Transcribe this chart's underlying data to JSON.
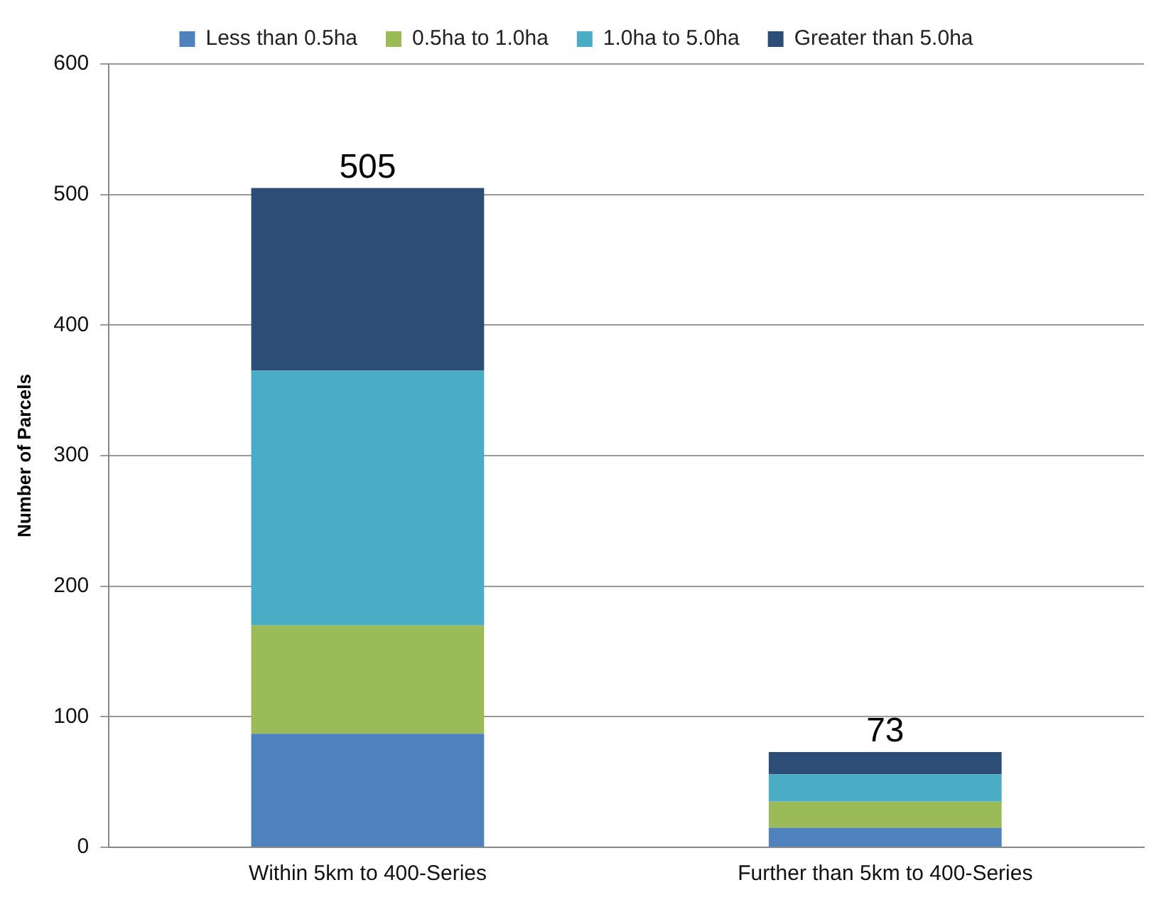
{
  "chart_data": {
    "type": "bar",
    "stacked": true,
    "ylabel": "Number of Parcels",
    "categories": [
      "Within 5km to 400-Series",
      "Further than 5km to 400-Series"
    ],
    "series": [
      {
        "name": "Less than 0.5ha",
        "color": "#4f81bd",
        "values": [
          87,
          15
        ]
      },
      {
        "name": "0.5ha to 1.0ha",
        "color": "#9bbb59",
        "values": [
          83,
          20
        ]
      },
      {
        "name": "1.0ha to 5.0ha",
        "color": "#4bacc6",
        "values": [
          195,
          21
        ]
      },
      {
        "name": "Greater than 5.0ha",
        "color": "#2c4d75",
        "values": [
          140,
          17
        ]
      }
    ],
    "totals": [
      "505",
      "73"
    ],
    "ylim": [
      0,
      600
    ],
    "yticks": [
      0,
      100,
      200,
      300,
      400,
      500,
      600
    ],
    "grid": "y",
    "legend": "top"
  }
}
